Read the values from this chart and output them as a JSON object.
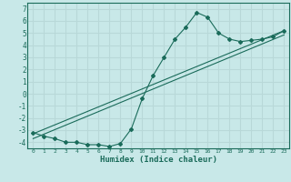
{
  "title": "",
  "xlabel": "Humidex (Indice chaleur)",
  "bg_color": "#c8e8e8",
  "grid_color": "#b8d8d8",
  "line_color": "#1a6b5a",
  "xlim": [
    -0.5,
    23.5
  ],
  "ylim": [
    -4.5,
    7.5
  ],
  "xticks": [
    0,
    1,
    2,
    3,
    4,
    5,
    6,
    7,
    8,
    9,
    10,
    11,
    12,
    13,
    14,
    15,
    16,
    17,
    18,
    19,
    20,
    21,
    22,
    23
  ],
  "yticks": [
    -4,
    -3,
    -2,
    -1,
    0,
    1,
    2,
    3,
    4,
    5,
    6,
    7
  ],
  "series1_x": [
    0,
    1,
    2,
    3,
    4,
    5,
    6,
    7,
    8,
    9,
    10,
    11,
    12,
    13,
    14,
    15,
    16,
    17,
    18,
    19,
    20,
    21,
    22,
    23
  ],
  "series1_y": [
    -3.2,
    -3.5,
    -3.7,
    -4.0,
    -4.0,
    -4.2,
    -4.2,
    -4.35,
    -4.1,
    -2.9,
    -0.4,
    1.5,
    3.0,
    4.5,
    5.5,
    6.7,
    6.3,
    5.0,
    4.5,
    4.3,
    4.4,
    4.5,
    4.7,
    5.2
  ],
  "series2_x": [
    0,
    23
  ],
  "series2_y": [
    -3.3,
    5.2
  ],
  "series3_x": [
    0,
    23
  ],
  "series3_y": [
    -3.7,
    4.85
  ]
}
